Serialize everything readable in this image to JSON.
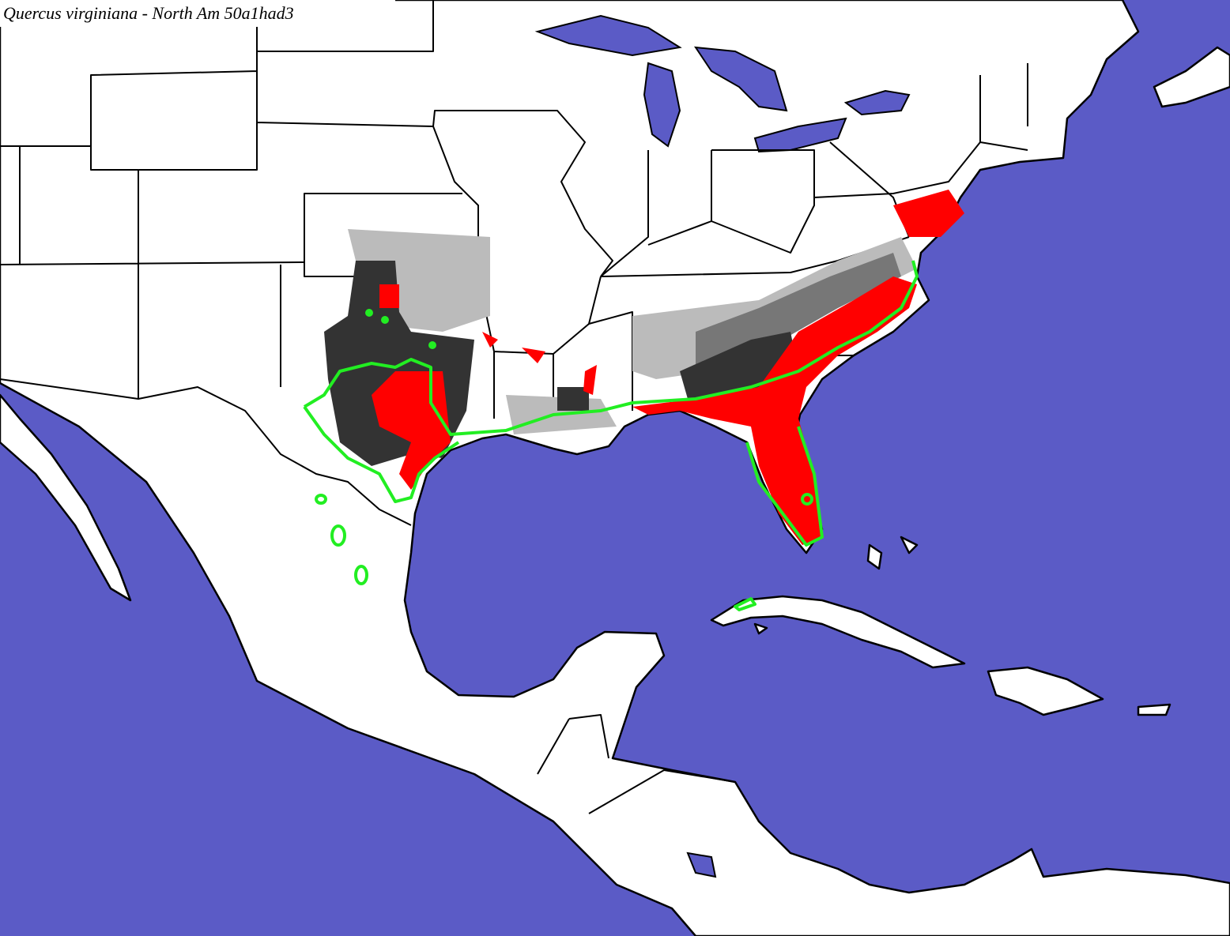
{
  "header": {
    "title": "Quercus virginiana - North Am 50a1had3"
  }
}
